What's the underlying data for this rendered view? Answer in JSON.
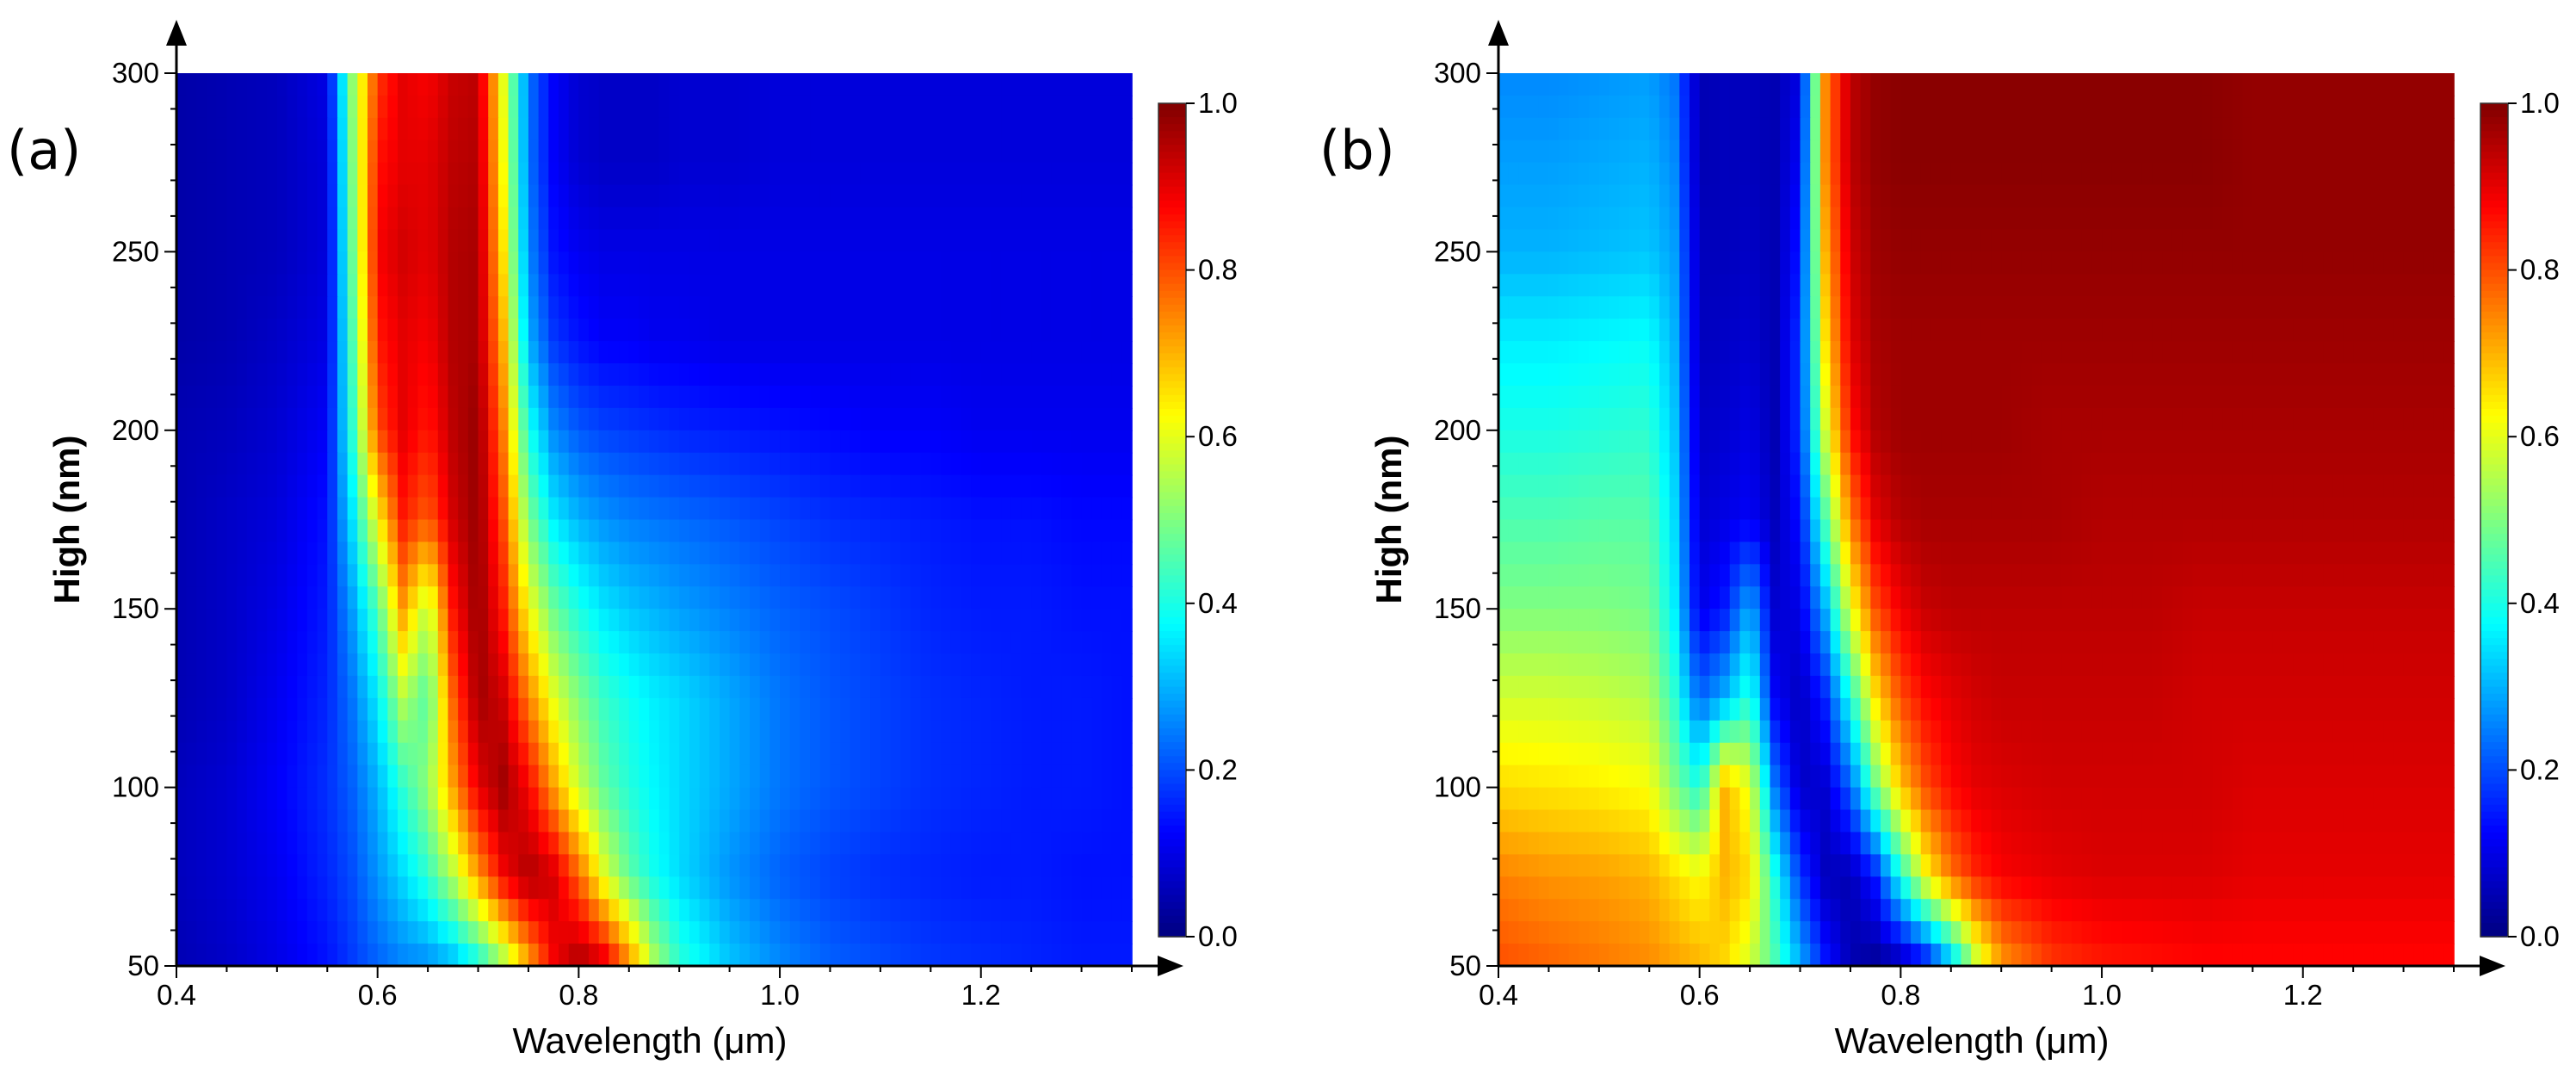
{
  "panels": [
    {
      "label": "(a)",
      "xlabel": "Wavelength (μm)",
      "ylabel": "High (nm)",
      "xticks": [
        "0.4",
        "0.6",
        "0.8",
        "1.0",
        "1.2"
      ],
      "yticks": [
        "50",
        "100",
        "150",
        "200",
        "250",
        "300"
      ],
      "cticks": [
        "0.0",
        "0.2",
        "0.4",
        "0.6",
        "0.8",
        "1.0"
      ]
    },
    {
      "label": "(b)",
      "xlabel": "Wavelength (μm)",
      "ylabel": "High (nm)",
      "xticks": [
        "0.4",
        "0.6",
        "0.8",
        "1.0",
        "1.2"
      ],
      "yticks": [
        "50",
        "100",
        "150",
        "200",
        "250",
        "300"
      ],
      "cticks": [
        "0.0",
        "0.2",
        "0.4",
        "0.6",
        "0.8",
        "1.0"
      ]
    }
  ],
  "chart_data": [
    {
      "type": "heatmap",
      "panel": "(a)",
      "xlabel": "Wavelength (μm)",
      "ylabel": "High (nm)",
      "xlim": [
        0.4,
        1.35
      ],
      "ylim": [
        50,
        300
      ],
      "clim": [
        0.0,
        1.0
      ],
      "colormap": "jet",
      "x": [
        0.4,
        0.45,
        0.5,
        0.55,
        0.575,
        0.6,
        0.625,
        0.65,
        0.675,
        0.7,
        0.725,
        0.75,
        0.775,
        0.8,
        0.825,
        0.85,
        0.875,
        0.9,
        0.95,
        1.0,
        1.05,
        1.1,
        1.15,
        1.2,
        1.25,
        1.3,
        1.35
      ],
      "y": [
        50,
        75,
        100,
        125,
        150,
        175,
        200,
        225,
        250,
        275,
        300
      ],
      "z": [
        [
          0.05,
          0.07,
          0.1,
          0.14,
          0.18,
          0.22,
          0.25,
          0.26,
          0.3,
          0.38,
          0.52,
          0.7,
          0.88,
          0.97,
          0.92,
          0.75,
          0.55,
          0.42,
          0.32,
          0.26,
          0.22,
          0.2,
          0.18,
          0.17,
          0.16,
          0.15,
          0.15
        ],
        [
          0.06,
          0.08,
          0.11,
          0.16,
          0.2,
          0.27,
          0.34,
          0.42,
          0.55,
          0.72,
          0.88,
          0.96,
          0.92,
          0.78,
          0.6,
          0.47,
          0.39,
          0.34,
          0.27,
          0.22,
          0.19,
          0.17,
          0.16,
          0.15,
          0.15,
          0.14,
          0.14
        ],
        [
          0.06,
          0.08,
          0.12,
          0.17,
          0.22,
          0.3,
          0.42,
          0.52,
          0.72,
          0.9,
          0.97,
          0.88,
          0.72,
          0.57,
          0.47,
          0.41,
          0.37,
          0.34,
          0.29,
          0.24,
          0.21,
          0.19,
          0.17,
          0.16,
          0.15,
          0.15,
          0.14
        ],
        [
          0.05,
          0.07,
          0.11,
          0.16,
          0.24,
          0.36,
          0.55,
          0.45,
          0.78,
          0.97,
          0.92,
          0.75,
          0.6,
          0.5,
          0.43,
          0.39,
          0.36,
          0.34,
          0.29,
          0.24,
          0.21,
          0.19,
          0.17,
          0.16,
          0.15,
          0.15,
          0.14
        ],
        [
          0.05,
          0.07,
          0.1,
          0.15,
          0.28,
          0.45,
          0.72,
          0.55,
          0.86,
          0.98,
          0.85,
          0.62,
          0.48,
          0.4,
          0.35,
          0.32,
          0.3,
          0.28,
          0.25,
          0.22,
          0.2,
          0.18,
          0.16,
          0.15,
          0.15,
          0.14,
          0.14
        ],
        [
          0.05,
          0.07,
          0.09,
          0.14,
          0.35,
          0.62,
          0.85,
          0.78,
          0.92,
          0.98,
          0.8,
          0.5,
          0.36,
          0.3,
          0.27,
          0.25,
          0.24,
          0.23,
          0.21,
          0.19,
          0.17,
          0.16,
          0.15,
          0.14,
          0.14,
          0.13,
          0.13
        ],
        [
          0.05,
          0.06,
          0.08,
          0.12,
          0.42,
          0.8,
          0.9,
          0.85,
          0.94,
          0.98,
          0.75,
          0.4,
          0.26,
          0.21,
          0.19,
          0.18,
          0.17,
          0.16,
          0.15,
          0.14,
          0.13,
          0.12,
          0.12,
          0.11,
          0.11,
          0.11,
          0.11
        ],
        [
          0.04,
          0.05,
          0.07,
          0.1,
          0.45,
          0.85,
          0.9,
          0.88,
          0.95,
          0.96,
          0.7,
          0.3,
          0.18,
          0.14,
          0.12,
          0.12,
          0.11,
          0.11,
          0.1,
          0.1,
          0.1,
          0.1,
          0.1,
          0.1,
          0.1,
          0.1,
          0.1
        ],
        [
          0.04,
          0.05,
          0.06,
          0.09,
          0.48,
          0.88,
          0.92,
          0.9,
          0.95,
          0.96,
          0.65,
          0.26,
          0.14,
          0.11,
          0.1,
          0.1,
          0.1,
          0.1,
          0.1,
          0.1,
          0.1,
          0.1,
          0.1,
          0.1,
          0.1,
          0.1,
          0.1
        ],
        [
          0.04,
          0.05,
          0.06,
          0.09,
          0.5,
          0.86,
          0.9,
          0.9,
          0.94,
          0.95,
          0.62,
          0.24,
          0.12,
          0.08,
          0.07,
          0.07,
          0.07,
          0.08,
          0.08,
          0.09,
          0.09,
          0.09,
          0.09,
          0.09,
          0.09,
          0.09,
          0.09
        ],
        [
          0.04,
          0.05,
          0.06,
          0.1,
          0.52,
          0.82,
          0.9,
          0.88,
          0.93,
          0.94,
          0.6,
          0.24,
          0.12,
          0.08,
          0.07,
          0.07,
          0.07,
          0.08,
          0.08,
          0.09,
          0.09,
          0.09,
          0.09,
          0.09,
          0.09,
          0.09,
          0.09
        ]
      ]
    },
    {
      "type": "heatmap",
      "panel": "(b)",
      "xlabel": "Wavelength (μm)",
      "ylabel": "High (nm)",
      "xlim": [
        0.4,
        1.35
      ],
      "ylim": [
        50,
        300
      ],
      "clim": [
        0.0,
        1.0
      ],
      "colormap": "jet",
      "x": [
        0.4,
        0.45,
        0.5,
        0.55,
        0.575,
        0.6,
        0.625,
        0.65,
        0.675,
        0.7,
        0.725,
        0.75,
        0.775,
        0.8,
        0.825,
        0.85,
        0.875,
        0.9,
        0.95,
        1.0,
        1.05,
        1.1,
        1.15,
        1.2,
        1.25,
        1.3,
        1.35
      ],
      "y": [
        50,
        75,
        100,
        125,
        150,
        175,
        200,
        225,
        250,
        275,
        300
      ],
      "z": [
        [
          0.8,
          0.78,
          0.76,
          0.74,
          0.72,
          0.7,
          0.66,
          0.58,
          0.45,
          0.3,
          0.15,
          0.05,
          0.02,
          0.04,
          0.12,
          0.3,
          0.55,
          0.72,
          0.82,
          0.85,
          0.86,
          0.87,
          0.87,
          0.87,
          0.87,
          0.87,
          0.87
        ],
        [
          0.75,
          0.73,
          0.72,
          0.7,
          0.66,
          0.62,
          0.7,
          0.66,
          0.4,
          0.18,
          0.06,
          0.05,
          0.15,
          0.4,
          0.62,
          0.76,
          0.84,
          0.88,
          0.9,
          0.91,
          0.91,
          0.91,
          0.9,
          0.9,
          0.9,
          0.9,
          0.9
        ],
        [
          0.66,
          0.65,
          0.64,
          0.62,
          0.5,
          0.4,
          0.7,
          0.6,
          0.24,
          0.07,
          0.08,
          0.22,
          0.48,
          0.68,
          0.8,
          0.87,
          0.9,
          0.91,
          0.92,
          0.92,
          0.92,
          0.92,
          0.91,
          0.91,
          0.91,
          0.91,
          0.91
        ],
        [
          0.58,
          0.58,
          0.57,
          0.55,
          0.42,
          0.22,
          0.3,
          0.42,
          0.12,
          0.06,
          0.16,
          0.4,
          0.65,
          0.8,
          0.87,
          0.9,
          0.92,
          0.93,
          0.93,
          0.93,
          0.93,
          0.92,
          0.92,
          0.92,
          0.92,
          0.92,
          0.92
        ],
        [
          0.5,
          0.5,
          0.5,
          0.49,
          0.36,
          0.1,
          0.15,
          0.3,
          0.08,
          0.1,
          0.3,
          0.6,
          0.8,
          0.89,
          0.93,
          0.94,
          0.94,
          0.94,
          0.94,
          0.94,
          0.94,
          0.93,
          0.93,
          0.93,
          0.93,
          0.93,
          0.93
        ],
        [
          0.45,
          0.45,
          0.46,
          0.46,
          0.34,
          0.08,
          0.1,
          0.12,
          0.06,
          0.14,
          0.45,
          0.75,
          0.9,
          0.95,
          0.96,
          0.96,
          0.96,
          0.96,
          0.96,
          0.95,
          0.95,
          0.95,
          0.95,
          0.95,
          0.95,
          0.95,
          0.95
        ],
        [
          0.4,
          0.4,
          0.41,
          0.42,
          0.32,
          0.07,
          0.08,
          0.1,
          0.05,
          0.18,
          0.58,
          0.86,
          0.95,
          0.97,
          0.97,
          0.97,
          0.97,
          0.97,
          0.96,
          0.96,
          0.96,
          0.96,
          0.96,
          0.96,
          0.96,
          0.96,
          0.96
        ],
        [
          0.36,
          0.36,
          0.37,
          0.38,
          0.3,
          0.06,
          0.07,
          0.08,
          0.05,
          0.18,
          0.65,
          0.9,
          0.96,
          0.97,
          0.97,
          0.97,
          0.97,
          0.97,
          0.97,
          0.97,
          0.97,
          0.97,
          0.97,
          0.97,
          0.97,
          0.97,
          0.97
        ],
        [
          0.3,
          0.3,
          0.31,
          0.32,
          0.28,
          0.06,
          0.06,
          0.07,
          0.05,
          0.15,
          0.7,
          0.92,
          0.97,
          0.98,
          0.98,
          0.98,
          0.98,
          0.98,
          0.98,
          0.98,
          0.98,
          0.98,
          0.98,
          0.98,
          0.98,
          0.98,
          0.98
        ],
        [
          0.28,
          0.28,
          0.29,
          0.3,
          0.26,
          0.05,
          0.06,
          0.06,
          0.05,
          0.12,
          0.74,
          0.94,
          0.98,
          0.99,
          0.99,
          0.99,
          0.99,
          0.99,
          0.99,
          0.99,
          0.99,
          0.99,
          0.98,
          0.98,
          0.98,
          0.98,
          0.98
        ],
        [
          0.26,
          0.26,
          0.27,
          0.28,
          0.24,
          0.05,
          0.06,
          0.06,
          0.05,
          0.1,
          0.74,
          0.94,
          0.98,
          0.99,
          0.99,
          0.99,
          0.99,
          0.99,
          0.99,
          0.99,
          0.99,
          0.99,
          0.98,
          0.98,
          0.98,
          0.98,
          0.98
        ]
      ]
    }
  ]
}
